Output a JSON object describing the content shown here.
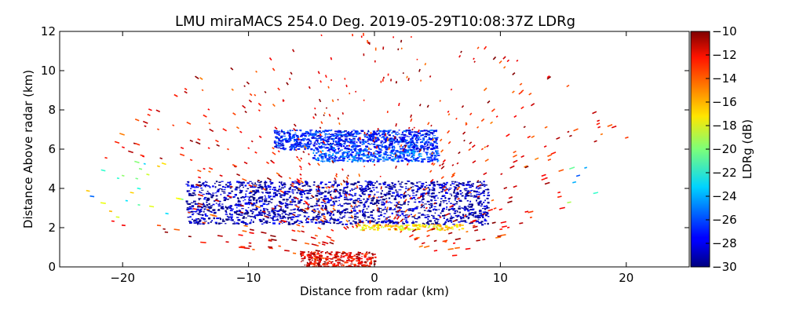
{
  "chart_data": {
    "type": "heatmap",
    "title": "LMU miraMACS 254.0 Deg. 2019-05-29T10:08:37Z  LDRg",
    "xlabel": "Distance from radar (km)",
    "ylabel": "Distance Above radar  (km)",
    "xlim": [
      -25,
      25
    ],
    "ylim": [
      0,
      12
    ],
    "x_ticks": [
      "−20",
      "−10",
      "0",
      "10",
      "20"
    ],
    "y_ticks": [
      "0",
      "2",
      "4",
      "6",
      "8",
      "10",
      "12"
    ],
    "x_tick_values": [
      -20,
      -10,
      0,
      10,
      20
    ],
    "y_tick_values": [
      0,
      2,
      4,
      6,
      8,
      10,
      12
    ],
    "grid": false,
    "colormap": "jet",
    "colorbar": {
      "label": "LDRg (dB)",
      "range": [
        -30,
        -10
      ],
      "tick_values": [
        -10,
        -12,
        -14,
        -16,
        -18,
        -20,
        -22,
        -24,
        -26,
        -28,
        -30
      ],
      "tick_labels": [
        "−10",
        "−12",
        "−14",
        "−16",
        "−18",
        "−20",
        "−22",
        "−24",
        "−26",
        "−28",
        "−30"
      ]
    },
    "regions": [
      {
        "feature": "stratiform layer",
        "x_range": [
          -15,
          9
        ],
        "y_range": [
          2.2,
          4.4
        ],
        "ldr_db": -29
      },
      {
        "feature": "upper cloud band",
        "x_range": [
          -8,
          5
        ],
        "y_range": [
          6.0,
          7.0
        ],
        "ldr_db": -27
      },
      {
        "feature": "upper cloud band",
        "x_range": [
          -5,
          5
        ],
        "y_range": [
          5.4,
          6.0
        ],
        "ldr_db": -26
      },
      {
        "feature": "near-surface clutter",
        "x_range": [
          -6,
          0
        ],
        "y_range": [
          0,
          0.8
        ],
        "ldr_db": -12
      },
      {
        "feature": "bright band",
        "x_range": [
          -1.5,
          7
        ],
        "y_range": [
          1.9,
          2.2
        ],
        "ldr_db": -17
      }
    ]
  }
}
